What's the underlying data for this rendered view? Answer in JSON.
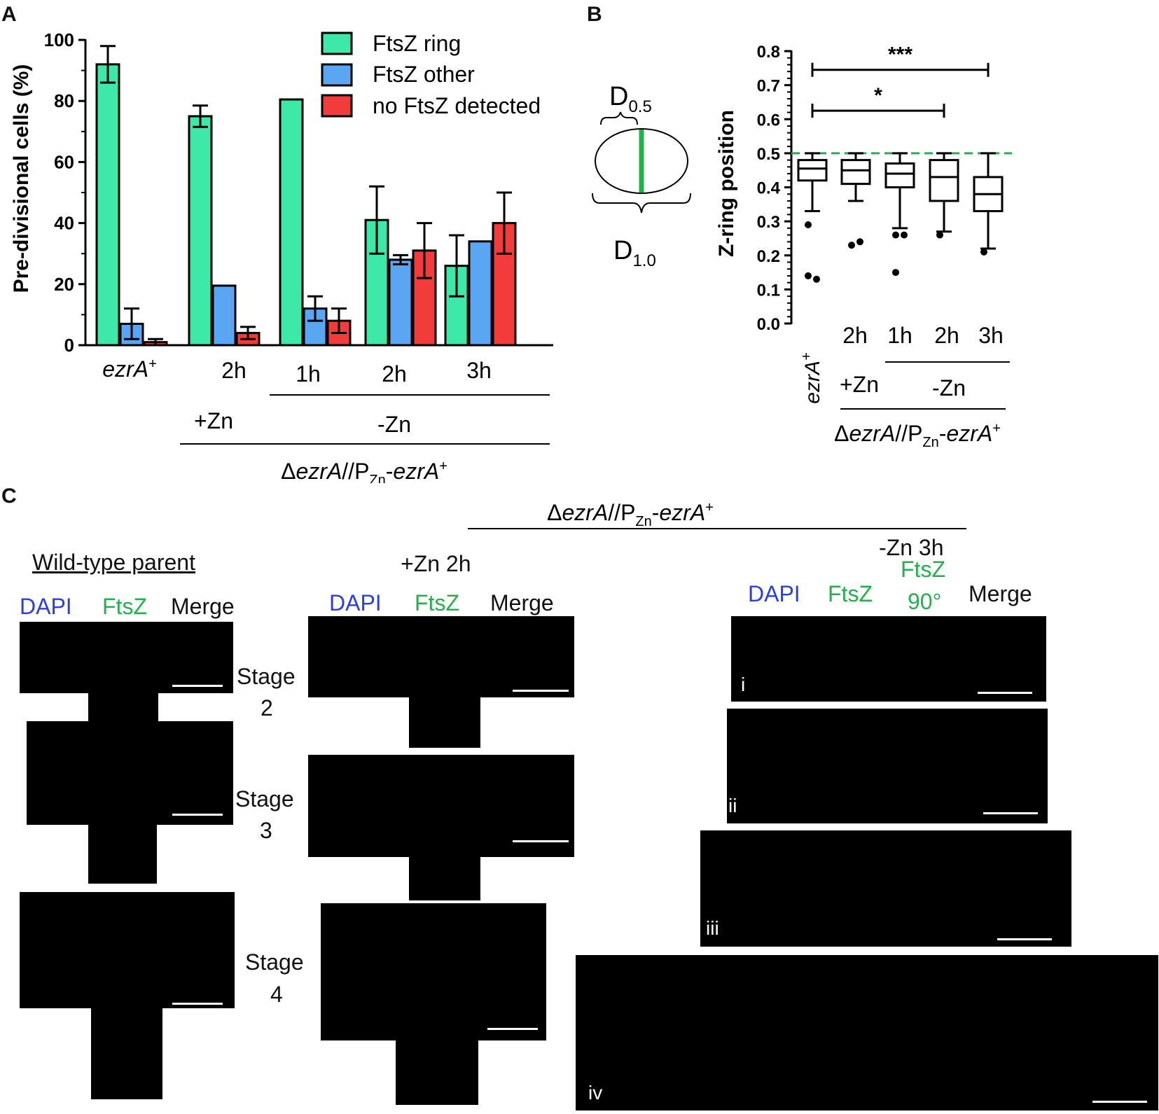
{
  "panel_labels": {
    "a": "A",
    "b": "B",
    "c": "C"
  },
  "chart_a": {
    "ylabel": "Pre-divisional cells (%)",
    "yticks": [
      "0",
      "20",
      "40",
      "60",
      "80",
      "100"
    ],
    "legend": [
      "FtsZ ring",
      "FtsZ other",
      "no FtsZ detected"
    ],
    "groups": [
      "ezrA+",
      "2h",
      "1h",
      "2h",
      "3h"
    ],
    "zn_plus": "+Zn",
    "zn_minus": "-Zn",
    "strain": "ΔezrA//PZn-ezrA+"
  },
  "chart_b": {
    "ylabel": "Z-ring position",
    "yticks": [
      "0.0",
      "0.1",
      "0.2",
      "0.3",
      "0.4",
      "0.5",
      "0.6",
      "0.7",
      "0.8"
    ],
    "groups": [
      "ezrA+",
      "2h",
      "1h",
      "2h",
      "3h"
    ],
    "zn_plus": "+Zn",
    "zn_minus": "-Zn",
    "sig_top": "***",
    "sig_bottom": "*",
    "strain": "ΔezrA//PZn-ezrA+"
  },
  "diagram": {
    "d05": "D0.5",
    "d10": "D1.0"
  },
  "panel_c": {
    "strain": "ΔezrA//PZn-ezrA+",
    "wt_title": "Wild-type parent",
    "zn2h_title": "+Zn 2h",
    "zn3h_title": "-Zn 3h",
    "dapi": "DAPI",
    "ftsz": "FtsZ",
    "ftsz90_a": "FtsZ",
    "ftsz90_b": "90°",
    "merge": "Merge",
    "stages": [
      {
        "word": "Stage",
        "num": "2"
      },
      {
        "word": "Stage",
        "num": "3"
      },
      {
        "word": "Stage",
        "num": "4"
      }
    ],
    "romans": [
      "i",
      "ii",
      "iii",
      "iv"
    ]
  },
  "chart_data": [
    {
      "type": "bar",
      "title": "",
      "xlabel": "",
      "ylabel": "Pre-divisional cells (%)",
      "ylim": [
        0,
        100
      ],
      "categories": [
        "ezrA+",
        "+Zn 2h",
        "-Zn 1h",
        "-Zn 2h",
        "-Zn 3h"
      ],
      "series": [
        {
          "name": "FtsZ ring",
          "color": "#3ee8a8",
          "values": [
            92,
            75,
            80.5,
            41,
            26
          ],
          "errors": [
            6,
            3.5,
            0,
            11,
            10
          ]
        },
        {
          "name": "FtsZ other",
          "color": "#5aa6f2",
          "values": [
            7,
            19.5,
            12,
            28,
            34
          ],
          "errors": [
            5,
            0,
            4,
            1.5,
            0
          ]
        },
        {
          "name": "no FtsZ detected",
          "color": "#f23c3c",
          "values": [
            1,
            4,
            8,
            31,
            40
          ],
          "errors": [
            1,
            2,
            4,
            9,
            10
          ]
        }
      ],
      "legend": "top-right"
    },
    {
      "type": "box",
      "title": "",
      "xlabel": "",
      "ylabel": "Z-ring position",
      "ylim": [
        0,
        0.8
      ],
      "reference_line": 0.5,
      "categories": [
        "ezrA+",
        "+Zn 2h",
        "-Zn 1h",
        "-Zn 2h",
        "-Zn 3h"
      ],
      "boxes": [
        {
          "whisker_low": 0.33,
          "q1": 0.42,
          "median": 0.455,
          "q3": 0.48,
          "whisker_high": 0.5,
          "outliers": [
            0.29,
            0.13,
            0.14
          ]
        },
        {
          "whisker_low": 0.36,
          "q1": 0.41,
          "median": 0.45,
          "q3": 0.48,
          "whisker_high": 0.5,
          "outliers": [
            0.23,
            0.24
          ]
        },
        {
          "whisker_low": 0.28,
          "q1": 0.4,
          "median": 0.44,
          "q3": 0.47,
          "whisker_high": 0.5,
          "outliers": [
            0.26,
            0.26,
            0.15
          ]
        },
        {
          "whisker_low": 0.27,
          "q1": 0.36,
          "median": 0.43,
          "q3": 0.48,
          "whisker_high": 0.5,
          "outliers": [
            0.26
          ]
        },
        {
          "whisker_low": 0.22,
          "q1": 0.33,
          "median": 0.38,
          "q3": 0.43,
          "whisker_high": 0.5,
          "outliers": [
            0.21
          ]
        }
      ],
      "significance": [
        {
          "from": 0,
          "to": 4,
          "label": "***"
        },
        {
          "from": 0,
          "to": 3,
          "label": "*"
        }
      ]
    }
  ]
}
